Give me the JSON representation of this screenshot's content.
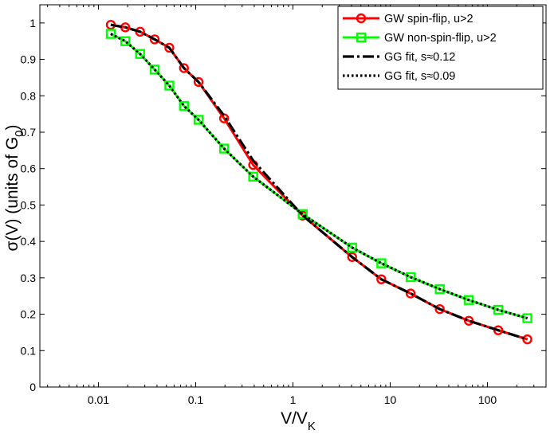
{
  "chart_data": {
    "type": "line",
    "xscale": "log",
    "xlim": [
      0.0025,
      400
    ],
    "ylim": [
      0,
      1.05
    ],
    "xlabel": {
      "main": "V/V",
      "sub": "K"
    },
    "ylabel": {
      "main": "σ(V) (units of G",
      "sub": "0",
      "end": ")"
    },
    "x_ticks": [
      {
        "value": 0.01,
        "label": "0.01"
      },
      {
        "value": 0.1,
        "label": "0.1"
      },
      {
        "value": 1,
        "label": "1"
      },
      {
        "value": 10,
        "label": "10"
      },
      {
        "value": 100,
        "label": "100"
      }
    ],
    "y_ticks": [
      {
        "value": 0,
        "label": "0"
      },
      {
        "value": 0.1,
        "label": "0.1"
      },
      {
        "value": 0.2,
        "label": "0.2"
      },
      {
        "value": 0.3,
        "label": "0.3"
      },
      {
        "value": 0.4,
        "label": "0.4"
      },
      {
        "value": 0.5,
        "label": "0.5"
      },
      {
        "value": 0.6,
        "label": "0.6"
      },
      {
        "value": 0.7,
        "label": "0.7"
      },
      {
        "value": 0.8,
        "label": "0.8"
      },
      {
        "value": 0.9,
        "label": "0.9"
      },
      {
        "value": 1,
        "label": "1"
      }
    ],
    "grid": false,
    "legend_position": "top-right",
    "series": [
      {
        "name": "GW spin-flip, u>2",
        "color": "#ff0000",
        "line_style": "solid",
        "marker": "circle",
        "x": [
          0.0134,
          0.0189,
          0.0268,
          0.0379,
          0.0536,
          0.0758,
          0.107,
          0.196,
          0.39,
          1.26,
          4.06,
          8.1,
          16.2,
          32.3,
          64.3,
          129,
          257
        ],
        "y": [
          0.995,
          0.988,
          0.976,
          0.955,
          0.932,
          0.876,
          0.838,
          0.738,
          0.61,
          0.471,
          0.357,
          0.296,
          0.257,
          0.214,
          0.182,
          0.156,
          0.131
        ]
      },
      {
        "name": "GW non-spin-flip, u>2",
        "color": "#00ff00",
        "line_style": "solid",
        "marker": "square",
        "x": [
          0.0134,
          0.0189,
          0.0268,
          0.0379,
          0.0536,
          0.0758,
          0.107,
          0.196,
          0.39,
          1.26,
          4.06,
          8.1,
          16.2,
          32.3,
          64.3,
          129,
          257
        ],
        "y": [
          0.97,
          0.95,
          0.915,
          0.872,
          0.828,
          0.772,
          0.734,
          0.655,
          0.578,
          0.475,
          0.383,
          0.34,
          0.302,
          0.269,
          0.239,
          0.212,
          0.189
        ]
      },
      {
        "name": "GG fit, s≈0.12",
        "color": "#000000",
        "line_style": "dashdot",
        "marker": "none",
        "x": [
          0.0134,
          0.0189,
          0.0268,
          0.0379,
          0.0536,
          0.0758,
          0.107,
          0.196,
          0.39,
          1.26,
          4.06,
          8.1,
          16.2,
          32.3,
          64.3,
          129,
          257
        ],
        "y": [
          0.995,
          0.988,
          0.976,
          0.955,
          0.932,
          0.876,
          0.838,
          0.745,
          0.622,
          0.471,
          0.357,
          0.296,
          0.257,
          0.214,
          0.182,
          0.156,
          0.131
        ]
      },
      {
        "name": "GG fit, s≈0.09",
        "color": "#000000",
        "line_style": "dotted",
        "marker": "none",
        "x": [
          0.0134,
          0.0189,
          0.0268,
          0.0379,
          0.0536,
          0.0758,
          0.107,
          0.196,
          0.39,
          1.26,
          4.06,
          8.1,
          16.2,
          32.3,
          64.3,
          129,
          257
        ],
        "y": [
          0.97,
          0.95,
          0.915,
          0.872,
          0.828,
          0.772,
          0.734,
          0.655,
          0.578,
          0.475,
          0.383,
          0.34,
          0.302,
          0.269,
          0.239,
          0.212,
          0.189
        ]
      }
    ]
  }
}
